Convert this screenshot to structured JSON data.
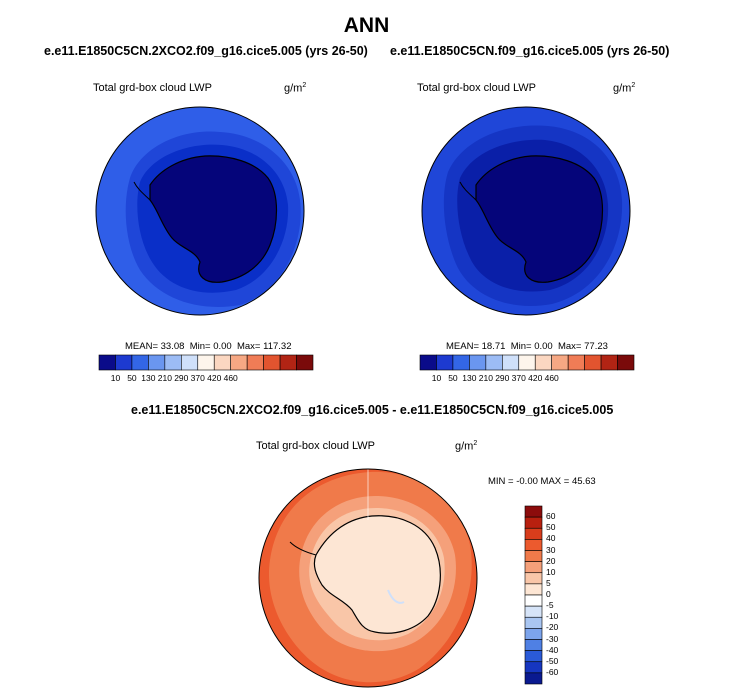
{
  "page": {
    "title": "ANN"
  },
  "panels": [
    {
      "case": "e.e11.E1850C5CN.2XCO2.f09_g16.cice5.005 (yrs 26-50)",
      "variable": "Total grd-box cloud LWP",
      "units_base": "g/m",
      "units_exp": "2",
      "mean_label": "MEAN=",
      "mean": "33.08",
      "min_label": "Min=",
      "min": "0.00",
      "max_label": "Max=",
      "max": "117.32"
    },
    {
      "case": "e.e11.E1850C5CN.f09_g16.cice5.005 (yrs 26-50)",
      "variable": "Total grd-box cloud LWP",
      "units_base": "g/m",
      "units_exp": "2",
      "mean_label": "MEAN=",
      "mean": "18.71",
      "min_label": "Min=",
      "min": "0.00",
      "max_label": "Max=",
      "max": "77.23"
    }
  ],
  "diff_panel": {
    "title": "e.e11.E1850C5CN.2XCO2.f09_g16.cice5.005 - e.e11.E1850C5CN.f09_g16.cice5.005",
    "variable": "Total grd-box cloud LWP",
    "units_base": "g/m",
    "units_exp": "2",
    "stats": "MIN =  -0.00 MAX =  45.63"
  },
  "chart_data": [
    {
      "type": "heatmap",
      "projection": "south polar stereographic",
      "title": "Total grd-box cloud LWP",
      "units": "g/m2",
      "mean": 33.08,
      "min": 0.0,
      "max": 117.32,
      "colorbar": {
        "orientation": "horizontal",
        "levels": [
          10,
          50,
          130,
          210,
          290,
          370,
          420,
          460
        ],
        "labels": [
          "10",
          "50",
          "130",
          "210",
          "290",
          "370",
          "420",
          "460"
        ],
        "colors": [
          "#0a0b8a",
          "#1d3ad0",
          "#3366e6",
          "#6a96f0",
          "#9cbcf5",
          "#cfe0fa",
          "#fdf5ec",
          "#fbd7c1",
          "#f6a884",
          "#f07c56",
          "#e2542f",
          "#b12414",
          "#7a0a0a"
        ]
      },
      "zones_center_to_edge": [
        "#05057a",
        "#0a2fc8",
        "#1f46d8",
        "#2f5ee8"
      ]
    },
    {
      "type": "heatmap",
      "projection": "south polar stereographic",
      "title": "Total grd-box cloud LWP",
      "units": "g/m2",
      "mean": 18.71,
      "min": 0.0,
      "max": 77.23,
      "colorbar": {
        "orientation": "horizontal",
        "levels": [
          10,
          50,
          130,
          210,
          290,
          370,
          420,
          460
        ],
        "labels": [
          "10",
          "50",
          "130",
          "210",
          "290",
          "370",
          "420",
          "460"
        ],
        "colors": [
          "#0a0b8a",
          "#1d3ad0",
          "#3366e6",
          "#6a96f0",
          "#9cbcf5",
          "#cfe0fa",
          "#fdf5ec",
          "#fbd7c1",
          "#f6a884",
          "#f07c56",
          "#e2542f",
          "#b12414",
          "#7a0a0a"
        ]
      },
      "zones_center_to_edge": [
        "#05057a",
        "#0a1fa8",
        "#1535c4",
        "#1f46d8"
      ]
    },
    {
      "type": "heatmap",
      "projection": "south polar stereographic",
      "title": "Total grd-box cloud LWP (difference)",
      "units": "g/m2",
      "min": -0.0,
      "max": 45.63,
      "colorbar": {
        "orientation": "vertical",
        "levels": [
          60,
          50,
          40,
          30,
          20,
          10,
          5,
          0,
          -5,
          -10,
          -20,
          -30,
          -40,
          -50,
          -60
        ],
        "labels": [
          "60",
          "50",
          "40",
          "30",
          "20",
          "10",
          "5",
          "0",
          "-5",
          "-10",
          "-20",
          "-30",
          "-40",
          "-50",
          "-60"
        ],
        "colors": [
          "#8c0c0c",
          "#b8200f",
          "#d83d1c",
          "#ec5a2e",
          "#f07a4a",
          "#f5a07a",
          "#f9c6a8",
          "#fde6d4",
          "#ffffff",
          "#d6e4f8",
          "#a9c6f2",
          "#7ca4ec",
          "#4f80e4",
          "#2a5ad8",
          "#1636c0",
          "#0a1a90"
        ],
        "color_order": "top to bottom"
      },
      "zones_center_to_edge": [
        "#fde6d4",
        "#f9c6a8",
        "#f5a07a",
        "#f07a4a",
        "#ec5a2e"
      ]
    }
  ]
}
